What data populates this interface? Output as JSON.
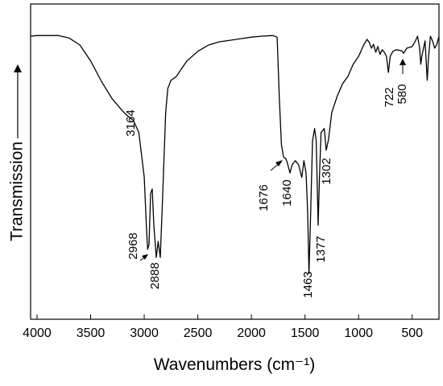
{
  "chart_data": {
    "type": "line",
    "x_label": "Wavenumbers (cm⁻¹)",
    "y_label": "Transmission",
    "xlim": [
      4060,
      250
    ],
    "xticks": [
      4000,
      3500,
      3000,
      2500,
      2000,
      1500,
      1000,
      500
    ],
    "ylim": [
      0,
      100
    ],
    "color": "#000000",
    "x": [
      4060,
      4000,
      3800,
      3700,
      3600,
      3500,
      3400,
      3300,
      3200,
      3164,
      3100,
      3050,
      3000,
      2980,
      2968,
      2955,
      2940,
      2925,
      2910,
      2888,
      2870,
      2850,
      2830,
      2800,
      2780,
      2750,
      2700,
      2650,
      2600,
      2500,
      2400,
      2300,
      2200,
      2100,
      2000,
      1900,
      1800,
      1760,
      1740,
      1720,
      1700,
      1676,
      1660,
      1640,
      1620,
      1590,
      1560,
      1530,
      1510,
      1490,
      1475,
      1463,
      1450,
      1430,
      1410,
      1395,
      1377,
      1365,
      1350,
      1320,
      1302,
      1280,
      1250,
      1200,
      1150,
      1100,
      1050,
      1000,
      950,
      920,
      900,
      880,
      860,
      840,
      820,
      800,
      780,
      760,
      740,
      722,
      705,
      680,
      650,
      600,
      580,
      550,
      500,
      470,
      450,
      430,
      420,
      410,
      380,
      360,
      350,
      330,
      310,
      290,
      270,
      250
    ],
    "values": [
      89.8,
      90,
      90,
      89.2,
      87,
      82,
      75.5,
      70,
      66,
      64.8,
      63,
      59.2,
      45,
      29.8,
      22.2,
      23.7,
      40,
      41.3,
      29.8,
      19.6,
      24.7,
      19.6,
      37.5,
      65.6,
      73.2,
      75.8,
      77,
      79.6,
      82,
      85,
      87,
      88,
      88.5,
      89,
      89.5,
      89.8,
      90,
      89.5,
      70.7,
      55.4,
      51.5,
      50.8,
      49,
      46.4,
      49,
      50.3,
      49,
      45,
      50.3,
      46.4,
      33.7,
      14.5,
      29.8,
      56.6,
      60.5,
      56.6,
      29.8,
      45,
      59.2,
      60.5,
      53.6,
      57.1,
      65.6,
      70.7,
      74.7,
      77,
      80.9,
      83.4,
      87.2,
      88.8,
      87.8,
      86,
      87.2,
      84.7,
      86.5,
      84,
      85.5,
      84.7,
      83.4,
      78.3,
      83.4,
      85,
      85.5,
      85.2,
      84.4,
      86,
      86.5,
      88.3,
      89.8,
      86,
      80.9,
      83.4,
      88.3,
      75.8,
      82,
      89.8,
      88.3,
      86,
      87.2,
      89.8
    ],
    "annotations": [
      {
        "text": "3164"
      },
      {
        "text": "2968"
      },
      {
        "text": "2888"
      },
      {
        "text": "1676"
      },
      {
        "text": "1640"
      },
      {
        "text": "1463"
      },
      {
        "text": "1377"
      },
      {
        "text": "1302"
      },
      {
        "text": "722"
      },
      {
        "text": "580"
      }
    ]
  }
}
